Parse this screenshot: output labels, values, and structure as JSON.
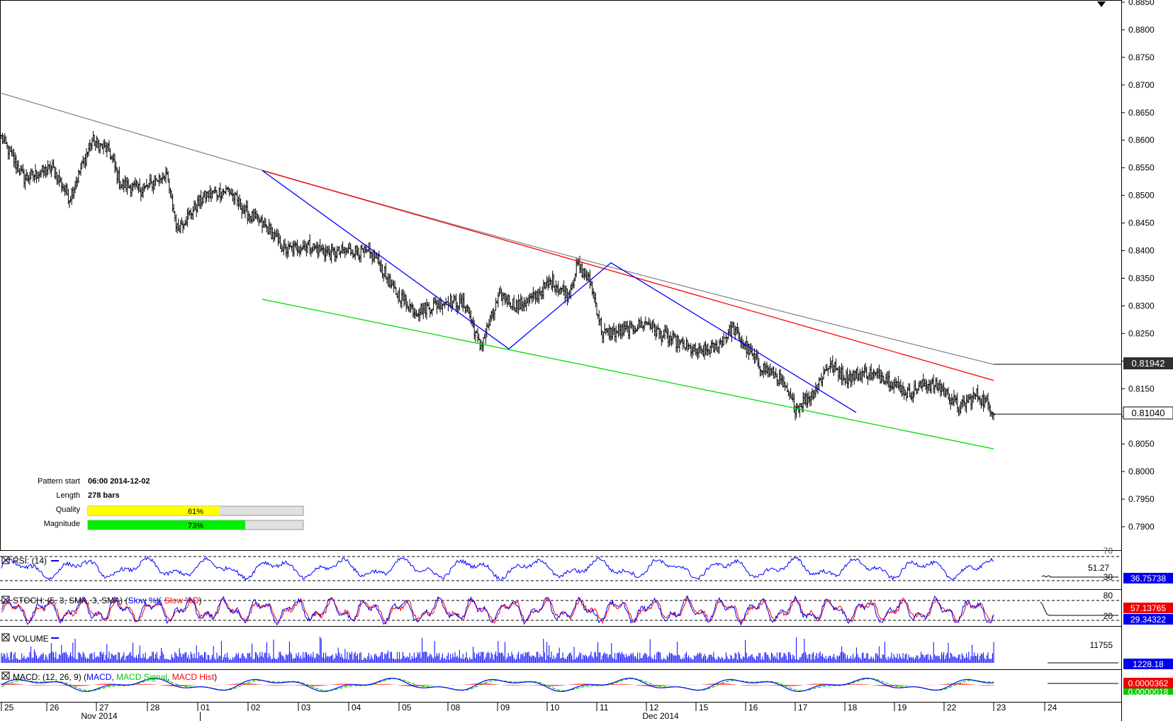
{
  "chart_data": {
    "type": "candlestick",
    "main": {
      "y_ticks": [
        "0.8850",
        "0.8800",
        "0.8750",
        "0.8700",
        "0.8650",
        "0.8600",
        "0.8550",
        "0.8500",
        "0.8450",
        "0.8400",
        "0.8350",
        "0.8300",
        "0.8250",
        "0.8200",
        "0.8150",
        "0.8100",
        "0.8050",
        "0.8000",
        "0.7950",
        "0.7900"
      ],
      "ylim": [
        0.787,
        0.885
      ],
      "ma_label": "0.81942",
      "price_label": "0.81040",
      "ma_value": 0.81942,
      "last_price": 0.8104,
      "ohlc_anchors": [
        [
          0,
          0.8605
        ],
        [
          20,
          0.853
        ],
        [
          45,
          0.855
        ],
        [
          60,
          0.8495
        ],
        [
          80,
          0.86
        ],
        [
          95,
          0.858
        ],
        [
          105,
          0.852
        ],
        [
          125,
          0.851
        ],
        [
          145,
          0.854
        ],
        [
          155,
          0.844
        ],
        [
          180,
          0.85
        ],
        [
          200,
          0.851
        ],
        [
          215,
          0.847
        ],
        [
          235,
          0.844
        ],
        [
          250,
          0.84
        ],
        [
          270,
          0.841
        ],
        [
          290,
          0.8395
        ],
        [
          310,
          0.84
        ],
        [
          330,
          0.839
        ],
        [
          345,
          0.833
        ],
        [
          365,
          0.829
        ],
        [
          380,
          0.83
        ],
        [
          395,
          0.831
        ],
        [
          410,
          0.83
        ],
        [
          422,
          0.8225
        ],
        [
          440,
          0.832
        ],
        [
          455,
          0.83
        ],
        [
          470,
          0.8315
        ],
        [
          485,
          0.8345
        ],
        [
          500,
          0.832
        ],
        [
          508,
          0.8375
        ],
        [
          520,
          0.834
        ],
        [
          530,
          0.825
        ],
        [
          550,
          0.8255
        ],
        [
          570,
          0.827
        ],
        [
          580,
          0.825
        ],
        [
          600,
          0.823
        ],
        [
          615,
          0.8215
        ],
        [
          630,
          0.8225
        ],
        [
          645,
          0.826
        ],
        [
          660,
          0.8215
        ],
        [
          670,
          0.819
        ],
        [
          685,
          0.817
        ],
        [
          700,
          0.8115
        ],
        [
          715,
          0.814
        ],
        [
          730,
          0.8195
        ],
        [
          745,
          0.817
        ],
        [
          760,
          0.818
        ],
        [
          780,
          0.817
        ],
        [
          800,
          0.814
        ],
        [
          815,
          0.816
        ],
        [
          830,
          0.815
        ],
        [
          845,
          0.8115
        ],
        [
          860,
          0.814
        ],
        [
          875,
          0.811
        ]
      ]
    },
    "pattern": {
      "start_label": "Pattern start",
      "start_value": "06:00 2014-12-02",
      "length_label": "Length",
      "length_value": "278 bars",
      "quality_label": "Quality",
      "quality_pct": 61,
      "quality_text": "61%",
      "magnitude_label": "Magnitude",
      "magnitude_pct": 73,
      "magnitude_text": "73%",
      "upper_line": [
        [
          0.8545,
          0
        ],
        [
          0.8165,
          1
        ]
      ],
      "lower_line": [
        [
          0.8312,
          0
        ],
        [
          0.8041,
          1
        ]
      ],
      "zigzag": [
        0.8545,
        0.8222,
        0.8378,
        0.8107
      ]
    },
    "rsi": {
      "title": "RSI: (14)",
      "ticks": [
        "70",
        "51.27",
        "30"
      ],
      "value": "36.75738"
    },
    "stoch": {
      "title_prefix": "STOCH: (5, 3, SMA, 3, SMA) (",
      "k_label": "Slow %K",
      "d_label": "Slow %D",
      "title_suffix": ")",
      "ticks": [
        "80",
        "20"
      ],
      "k_value": "57.13765",
      "d_value": "29.34322"
    },
    "volume": {
      "title": "VOLUME",
      "tick": "11755",
      "value": "1228.18"
    },
    "macd": {
      "title_prefix": "MACD: (12, 26, 9) (",
      "macd_label": "MACD",
      "signal_label": "MACD Signal",
      "hist_label": "MACD Hist",
      "title_suffix": ")",
      "value": "0.0000362",
      "value2": "0.0000018"
    },
    "x_axis": {
      "days": [
        "25",
        "26",
        "27",
        "28",
        "01",
        "02",
        "03",
        "04",
        "05",
        "08",
        "09",
        "10",
        "11",
        "12",
        "15",
        "16",
        "17",
        "18",
        "19",
        "22",
        "23",
        "24"
      ],
      "months": [
        "Nov 2014",
        "Dec 2014"
      ]
    },
    "colors": {
      "bars": "#000000",
      "ma": "#808080",
      "upper": "#ff0000",
      "lower": "#00dd00",
      "zigzag": "#0000ff",
      "quality_fill": "#ffff00",
      "magnitude_fill": "#00ee00",
      "rsi_line": "#0000ff",
      "stoch_k": "#0000ff",
      "stoch_d": "#ff0000",
      "volume": "#0000ff",
      "macd_line": "#0000ff",
      "macd_signal": "#00cc00",
      "macd_hist": "#ff0000",
      "label_dark": "#303030",
      "label_blue": "#0000ff",
      "label_red": "#ff0000",
      "label_green": "#00cc00"
    }
  }
}
